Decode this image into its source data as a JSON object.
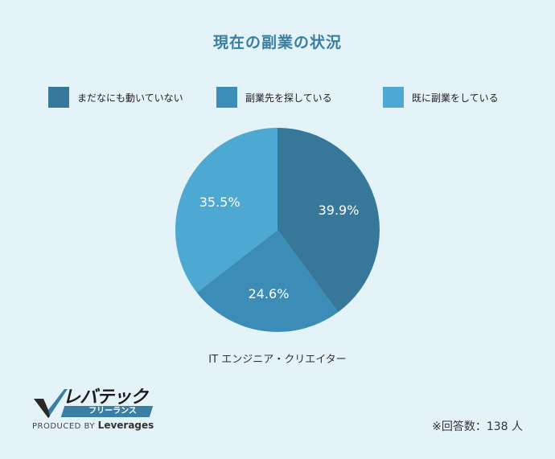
{
  "chart_data": {
    "type": "pie",
    "title": "現在の副業の状況",
    "xlabel": "IT エンジニア・クリエイター",
    "legend_position": "top",
    "categories": [
      "まだなにも動いていない",
      "副業先を探している",
      "既に副業をしている"
    ],
    "values": [
      39.9,
      24.6,
      35.5
    ],
    "value_labels": [
      "39.9%",
      "24.6%",
      "35.5%"
    ],
    "colors": [
      "#36779a",
      "#3b8db7",
      "#4da9d1"
    ]
  },
  "logo": {
    "name": "レバテック",
    "sub": "フリーランス",
    "produced_by": "PRODUCED BY",
    "brand": "Leverages"
  },
  "note": "※回答数：138 人"
}
